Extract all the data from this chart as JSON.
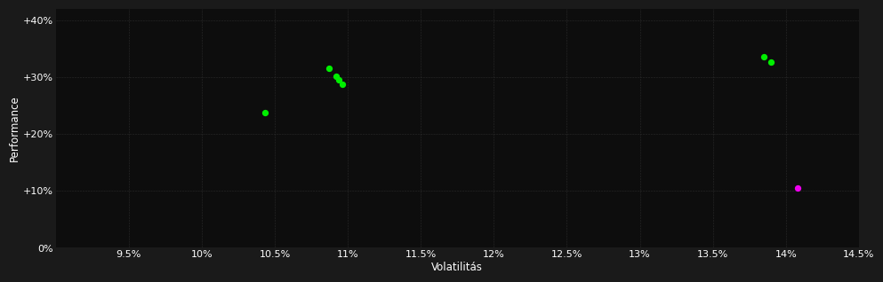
{
  "background_color": "#1a1a1a",
  "plot_bg_color": "#0d0d0d",
  "grid_color": "#333333",
  "text_color": "#ffffff",
  "xlabel": "Volatilitás",
  "ylabel": "Performance",
  "xlim": [
    0.09,
    0.145
  ],
  "ylim": [
    0.0,
    0.42
  ],
  "xticks": [
    0.095,
    0.1,
    0.105,
    0.11,
    0.115,
    0.12,
    0.125,
    0.13,
    0.135,
    0.14,
    0.145
  ],
  "xtick_labels": [
    "9.5%",
    "10%",
    "10.5%",
    "11%",
    "11.5%",
    "12%",
    "12.5%",
    "13%",
    "13.5%",
    "14%",
    "14.5%"
  ],
  "yticks": [
    0.0,
    0.1,
    0.2,
    0.3,
    0.4
  ],
  "ytick_labels": [
    "0%",
    "+10%",
    "+20%",
    "+30%",
    "+40%"
  ],
  "green_points": [
    [
      0.1043,
      0.238
    ],
    [
      0.1087,
      0.316
    ],
    [
      0.1092,
      0.302
    ],
    [
      0.1094,
      0.295
    ],
    [
      0.1096,
      0.287
    ],
    [
      0.1385,
      0.336
    ],
    [
      0.139,
      0.327
    ]
  ],
  "magenta_points": [
    [
      0.1408,
      0.105
    ]
  ],
  "green_color": "#00ee00",
  "magenta_color": "#ee00ee",
  "marker_size": 18,
  "marker_size_magenta": 18,
  "font_size_ticks": 8,
  "font_size_label": 8.5
}
